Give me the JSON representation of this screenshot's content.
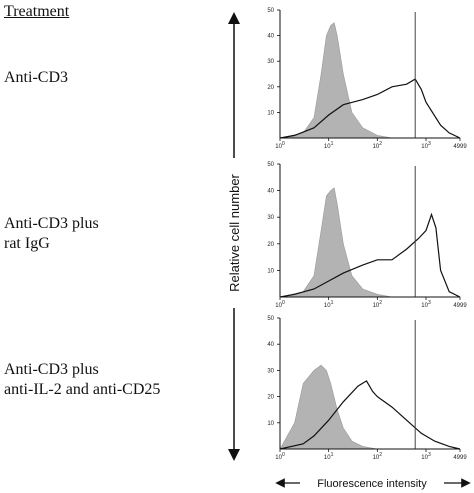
{
  "treatment_header": "Treatment",
  "treatments": [
    {
      "line1": "Anti-CD3",
      "line2": ""
    },
    {
      "line1": "Anti-CD3 plus",
      "line2": "rat IgG"
    },
    {
      "line1": "Anti-CD3 plus",
      "line2": "anti-IL-2 and anti-CD25"
    }
  ],
  "chart_data": [
    {
      "type": "area",
      "title": "Anti-CD3",
      "ylabel": "Relative cell number",
      "xlabel": "Fluorescence intensity",
      "xscale": "log",
      "xlim": [
        1,
        4999
      ],
      "ylim": [
        0,
        50
      ],
      "x_ticks": [
        "10^0",
        "10^1",
        "10^2",
        "10^3",
        "4999"
      ],
      "y_ticks": [
        10,
        20,
        30,
        40,
        50
      ],
      "reference_line_x": 600,
      "series": [
        {
          "style": "filled-gray",
          "x": [
            1,
            3,
            5,
            7,
            9,
            11,
            13,
            15,
            20,
            30,
            50,
            100,
            200
          ],
          "values": [
            0,
            2,
            8,
            25,
            40,
            44,
            45,
            40,
            25,
            10,
            4,
            1,
            0
          ]
        },
        {
          "style": "outline",
          "x": [
            1,
            2,
            5,
            10,
            20,
            50,
            100,
            200,
            400,
            600,
            800,
            1000,
            2000,
            3000,
            4999
          ],
          "values": [
            0,
            1,
            4,
            9,
            13,
            15,
            17,
            20,
            21,
            23,
            19,
            14,
            5,
            2,
            0
          ]
        }
      ]
    },
    {
      "type": "area",
      "title": "Anti-CD3 plus rat IgG",
      "xscale": "log",
      "xlim": [
        1,
        4999
      ],
      "ylim": [
        0,
        50
      ],
      "x_ticks": [
        "10^0",
        "10^1",
        "10^2",
        "10^3",
        "4999"
      ],
      "y_ticks": [
        10,
        20,
        30,
        40,
        50
      ],
      "reference_line_x": 600,
      "series": [
        {
          "style": "filled-gray",
          "x": [
            1,
            3,
            5,
            7,
            9,
            11,
            13,
            15,
            20,
            30,
            50,
            100,
            200
          ],
          "values": [
            0,
            2,
            8,
            25,
            38,
            40,
            41,
            35,
            20,
            8,
            3,
            1,
            0
          ]
        },
        {
          "style": "outline",
          "x": [
            1,
            2,
            5,
            10,
            20,
            50,
            100,
            200,
            400,
            700,
            1000,
            1300,
            1600,
            2000,
            3000,
            4999
          ],
          "values": [
            0,
            1,
            3,
            6,
            9,
            12,
            14,
            14,
            18,
            22,
            25,
            31,
            26,
            10,
            2,
            0
          ]
        }
      ]
    },
    {
      "type": "area",
      "title": "Anti-CD3 plus anti-IL-2 and anti-CD25",
      "xscale": "log",
      "xlim": [
        1,
        4999
      ],
      "ylim": [
        0,
        50
      ],
      "x_ticks": [
        "10^0",
        "10^1",
        "10^2",
        "10^3",
        "4999"
      ],
      "y_ticks": [
        10,
        20,
        30,
        40,
        50
      ],
      "reference_line_x": 600,
      "series": [
        {
          "style": "filled-gray",
          "x": [
            1,
            2,
            3,
            5,
            7,
            9,
            11,
            15,
            20,
            30,
            50,
            100
          ],
          "values": [
            0,
            10,
            25,
            30,
            32,
            30,
            25,
            15,
            8,
            3,
            1,
            0
          ]
        },
        {
          "style": "outline",
          "x": [
            1,
            3,
            5,
            10,
            20,
            40,
            60,
            80,
            100,
            200,
            400,
            800,
            1500,
            3000,
            4999
          ],
          "values": [
            0,
            2,
            5,
            11,
            18,
            24,
            26,
            22,
            20,
            16,
            11,
            6,
            3,
            1,
            0
          ]
        }
      ]
    }
  ]
}
